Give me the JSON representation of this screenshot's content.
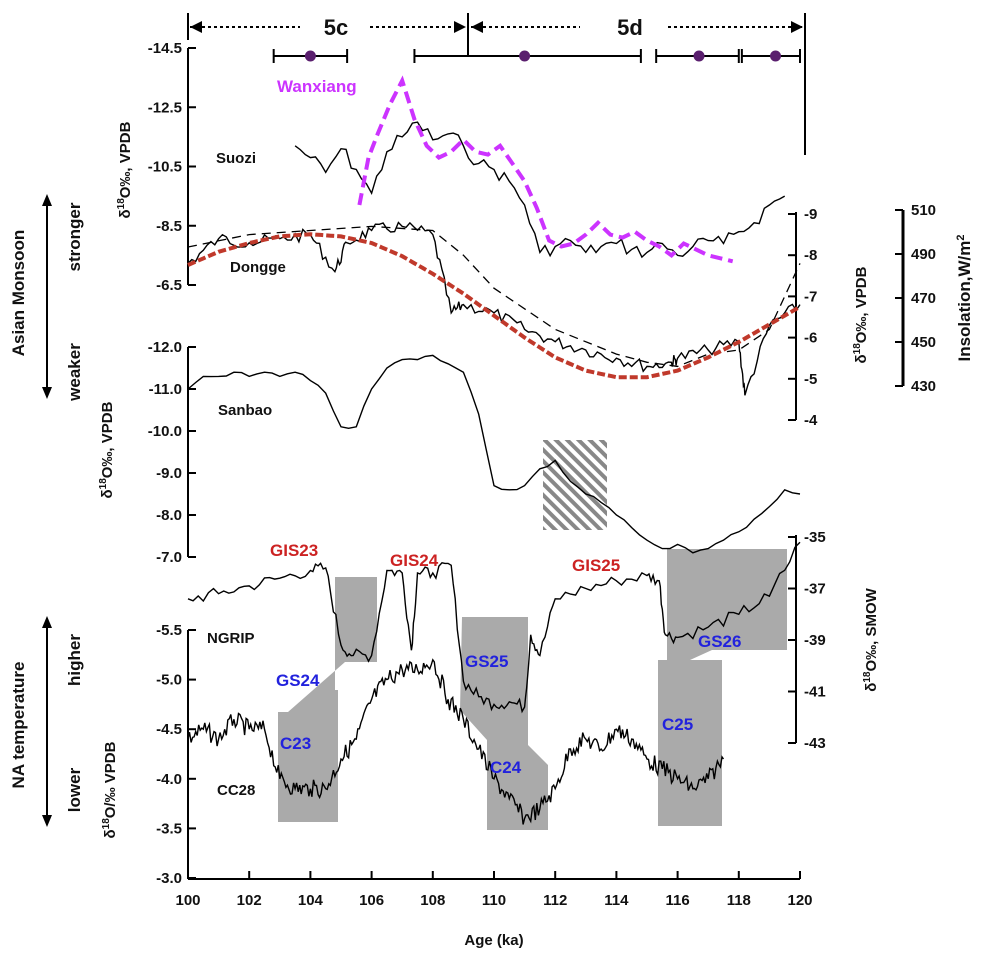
{
  "chart_data": {
    "type": "line",
    "x_axis": {
      "label": "Age (ka)",
      "range": [
        100,
        120
      ],
      "ticks": [
        "100",
        "102",
        "104",
        "106",
        "108",
        "110",
        "112",
        "114",
        "116",
        "118",
        "120"
      ]
    },
    "periods": [
      {
        "label": "5c",
        "range": [
          100,
          109
        ]
      },
      {
        "label": "5d",
        "range": [
          109,
          120
        ]
      }
    ],
    "age_bars": [
      {
        "range": [
          102.8,
          105.2
        ],
        "center": 104.0
      },
      {
        "range": [
          107.4,
          114.8
        ],
        "center": 111.0
      },
      {
        "range": [
          115.3,
          118.0
        ],
        "center": 116.7
      },
      {
        "range": [
          118.1,
          120.0
        ],
        "center": 119.2
      }
    ],
    "left_axes": [
      {
        "label": "δ18O‰, VPDB",
        "ticks": [
          "-14.5",
          "-12.5",
          "-10.5",
          "-8.5",
          "-6.5"
        ],
        "range": [
          -14.5,
          -6.5
        ]
      },
      {
        "label": "δ18O‰, VPDB",
        "ticks": [
          "-12.0",
          "-11.0",
          "-10.0",
          "-9.0",
          "-8.0",
          "-7.0"
        ],
        "range": [
          -12.0,
          -7.0
        ]
      },
      {
        "label": "δ18O/‰ VPDB",
        "ticks": [
          "-5.5",
          "-5.0",
          "-4.5",
          "-4.0",
          "-3.5",
          "-3.0"
        ],
        "range": [
          -5.5,
          -3.0
        ]
      }
    ],
    "right_axes": [
      {
        "label": "δ18O‰, VPDB",
        "ticks": [
          "-9",
          "-8",
          "-7",
          "-6",
          "-5",
          "-4"
        ],
        "range": [
          -9,
          -4
        ]
      },
      {
        "label": "Insolation,W/m2",
        "ticks": [
          "510",
          "490",
          "470",
          "450",
          "430"
        ],
        "range": [
          430,
          510
        ]
      },
      {
        "label": "δ18O‰, SMOW",
        "ticks": [
          "-35",
          "-37",
          "-39",
          "-41",
          "-43"
        ],
        "range": [
          -43,
          -35
        ]
      }
    ],
    "side_labels": {
      "monsoon": "Asian Monsoon",
      "monsoon_up": "stronger",
      "monsoon_down": "weaker",
      "temperature": "NA temperature",
      "temperature_up": "higher",
      "temperature_down": "lower"
    },
    "series": [
      {
        "name": "Suozi",
        "color": "#000000",
        "style": "solid",
        "x": [
          103.5,
          104,
          104.5,
          105,
          105.5,
          106,
          106.5,
          107,
          107.5,
          108,
          108.5,
          109,
          109.5,
          110,
          110.5,
          111,
          111.5,
          112,
          112.5,
          113,
          113.5,
          114,
          114.5,
          115,
          115.5,
          116,
          116.5,
          117,
          117.5,
          118,
          118.5,
          119,
          119.5
        ],
        "y": [
          -11.2,
          -10.8,
          -10.3,
          -11.1,
          -10.4,
          -9.6,
          -11.0,
          -11.5,
          -12.0,
          -11.4,
          -11.6,
          -11.2,
          -10.6,
          -10.4,
          -10.0,
          -9.2,
          -7.6,
          -7.8,
          -8.0,
          -7.6,
          -7.8,
          -7.9,
          -7.7,
          -7.6,
          -7.9,
          -7.5,
          -7.8,
          -8.0,
          -7.9,
          -8.3,
          -8.6,
          -9.2,
          -9.5
        ]
      },
      {
        "name": "Wanxiang",
        "color": "#cc33ff",
        "style": "dashed",
        "x": [
          105.6,
          105.9,
          106.2,
          106.6,
          107.0,
          107.4,
          107.8,
          108.2,
          108.6,
          109.0,
          109.4,
          109.8,
          110.2,
          110.6,
          111.0,
          111.4,
          111.8,
          112.2,
          112.6,
          113.0,
          113.4,
          113.8,
          114.2,
          114.6,
          115.0,
          115.4,
          115.8,
          116.2,
          116.6,
          117.0,
          117.4,
          117.8
        ],
        "y": [
          -9.2,
          -10.8,
          -11.6,
          -12.6,
          -13.4,
          -12.1,
          -11.2,
          -10.8,
          -11.0,
          -11.4,
          -11.0,
          -10.9,
          -11.2,
          -10.6,
          -10.0,
          -9.1,
          -8.0,
          -7.8,
          -7.9,
          -8.2,
          -8.6,
          -8.2,
          -8.1,
          -8.3,
          -8.0,
          -7.8,
          -7.5,
          -7.9,
          -7.7,
          -7.5,
          -7.4,
          -7.3
        ]
      },
      {
        "name": "Dongge",
        "color": "#000000",
        "style": "solid",
        "axis": "right-1",
        "x": [
          100,
          101,
          102,
          103,
          104,
          104.8,
          105.2,
          106,
          107,
          108,
          108.6,
          109,
          110,
          111,
          112,
          113,
          114,
          115,
          115.8,
          116,
          117,
          118,
          118.2,
          119,
          120
        ],
        "y": [
          -7.8,
          -8.4,
          -8.3,
          -8.4,
          -8.5,
          -7.6,
          -8.3,
          -8.6,
          -8.7,
          -8.5,
          -6.6,
          -6.8,
          -6.6,
          -6.2,
          -5.9,
          -5.7,
          -5.5,
          -5.3,
          -5.4,
          -5.5,
          -5.7,
          -5.9,
          -4.6,
          -6.3,
          -6.8
        ]
      },
      {
        "name": "Dongge (dashed)",
        "color": "#000000",
        "style": "dashed",
        "axis": "right-1",
        "x": [
          100,
          102,
          104,
          106,
          108,
          109,
          110,
          112,
          114,
          115,
          116,
          117,
          118,
          119,
          120
        ],
        "y": [
          -8.2,
          -8.5,
          -8.6,
          -8.7,
          -8.6,
          -8.0,
          -7.2,
          -6.2,
          -5.6,
          -5.4,
          -5.3,
          -5.6,
          -5.7,
          -6.2,
          -7.8
        ]
      },
      {
        "name": "Insolation",
        "color": "#c0392b",
        "style": "dotted",
        "axis": "right-2",
        "x": [
          100,
          101,
          102,
          103,
          104,
          105,
          106,
          107,
          108,
          109,
          110,
          111,
          112,
          113,
          114,
          115,
          116,
          117,
          118,
          119,
          120
        ],
        "y": [
          485,
          491,
          495,
          498,
          499,
          498,
          495,
          489,
          481,
          472,
          462,
          452,
          443,
          437,
          434,
          434,
          437,
          443,
          450,
          458,
          466
        ]
      },
      {
        "name": "Sanbao",
        "color": "#000000",
        "style": "solid",
        "x": [
          100,
          100.5,
          101,
          101.5,
          102,
          102.5,
          103,
          103.5,
          104,
          104.5,
          105,
          105.5,
          106,
          106.5,
          107,
          107.5,
          108,
          108.5,
          109,
          109.5,
          110,
          110.5,
          111,
          111.5,
          112,
          112.5,
          113,
          113.5,
          114,
          114.5,
          115,
          115.5,
          116,
          116.5,
          117,
          117.5,
          118,
          118.5,
          119,
          119.5,
          120
        ],
        "y": [
          -11.0,
          -11.3,
          -11.3,
          -11.4,
          -11.3,
          -11.4,
          -11.3,
          -11.4,
          -11.2,
          -10.9,
          -10.1,
          -10.1,
          -11.0,
          -11.5,
          -11.7,
          -11.7,
          -11.8,
          -11.6,
          -11.4,
          -10.4,
          -8.7,
          -8.6,
          -8.7,
          -9.1,
          -9.3,
          -8.8,
          -8.5,
          -8.3,
          -8.0,
          -7.7,
          -7.4,
          -7.2,
          -7.3,
          -7.1,
          -7.2,
          -7.4,
          -7.6,
          -7.9,
          -8.2,
          -8.6,
          -8.5
        ]
      },
      {
        "name": "NGRIP",
        "color": "#000000",
        "style": "solid",
        "axis": "right-3",
        "x": [
          100,
          101,
          102,
          103,
          104,
          104.5,
          105,
          105.4,
          106,
          106.5,
          107,
          107.3,
          107.5,
          108,
          108.6,
          109,
          109.5,
          110,
          110.5,
          111,
          111.2,
          111.5,
          112,
          113,
          114,
          115,
          115.4,
          115.6,
          116,
          117,
          118,
          119,
          120
        ],
        "y": [
          -37.4,
          -37.2,
          -36.9,
          -36.6,
          -36.3,
          -36.2,
          -39.2,
          -39.6,
          -39.6,
          -36.3,
          -36.4,
          -39.4,
          -36.4,
          -36.4,
          -36.1,
          -40.6,
          -41.2,
          -41.5,
          -41.4,
          -41.6,
          -38.8,
          -39.6,
          -37.4,
          -37.0,
          -36.7,
          -36.5,
          -36.7,
          -38.8,
          -38.9,
          -38.5,
          -38.0,
          -37.3,
          -35.2
        ]
      },
      {
        "name": "CC28",
        "color": "#000000",
        "style": "solid",
        "x": [
          100,
          100.5,
          101,
          101.5,
          102,
          102.5,
          103,
          103.5,
          104,
          104.5,
          105,
          105.5,
          106,
          106.5,
          107,
          107.5,
          108,
          108.5,
          109,
          109.5,
          110,
          110.5,
          111,
          111.5,
          112,
          112.5,
          113,
          113.5,
          114,
          114.5,
          115,
          115.5,
          116,
          116.5,
          117,
          117.5
        ],
        "y": [
          -4.4,
          -4.5,
          -4.4,
          -4.6,
          -4.5,
          -4.5,
          -4.0,
          -3.9,
          -3.9,
          -3.9,
          -4.2,
          -4.4,
          -4.8,
          -5.0,
          -5.1,
          -5.1,
          -5.2,
          -4.8,
          -4.6,
          -4.3,
          -4.0,
          -3.8,
          -3.6,
          -3.7,
          -3.9,
          -4.3,
          -4.4,
          -4.3,
          -4.5,
          -4.4,
          -4.2,
          -4.1,
          -4.0,
          -3.9,
          -4.0,
          -4.2
        ]
      }
    ],
    "annotations": {
      "red": [
        "GIS23",
        "GIS24",
        "GIS25"
      ],
      "blue": [
        "GS24",
        "GS25",
        "GS26",
        "C23",
        "C24",
        "C25"
      ]
    },
    "colors": {
      "wanxiang": "#cc33ff",
      "insolation": "#c0392b",
      "events_red": "#cc2222",
      "events_blue": "#2222dd",
      "shade": "#aaaaaa"
    }
  }
}
